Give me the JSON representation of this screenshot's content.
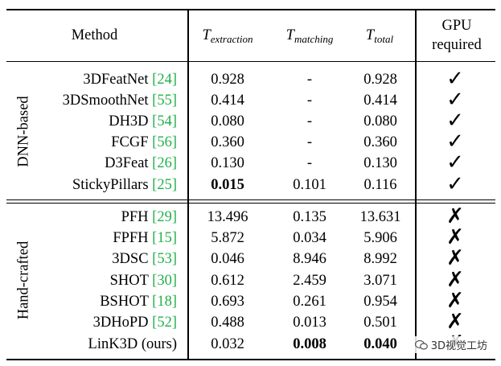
{
  "header": {
    "method": "Method",
    "t_extraction": {
      "base": "T",
      "sub": "extraction"
    },
    "t_matching": {
      "base": "T",
      "sub": "matching"
    },
    "t_total": {
      "base": "T",
      "sub": "total"
    },
    "gpu_line1": "GPU",
    "gpu_line2": "required"
  },
  "groups": {
    "dnn": "DNN-based",
    "handcrafted": "Hand-crafted"
  },
  "rows": [
    {
      "name": "3DFeatNet",
      "cite": "[24]",
      "t_ext": "0.928",
      "t_match": "-",
      "t_total": "0.928",
      "gpu": "✓"
    },
    {
      "name": "3DSmoothNet",
      "cite": "[55]",
      "t_ext": "0.414",
      "t_match": "-",
      "t_total": "0.414",
      "gpu": "✓"
    },
    {
      "name": "DH3D",
      "cite": "[54]",
      "t_ext": "0.080",
      "t_match": "-",
      "t_total": "0.080",
      "gpu": "✓"
    },
    {
      "name": "FCGF",
      "cite": "[56]",
      "t_ext": "0.360",
      "t_match": "-",
      "t_total": "0.360",
      "gpu": "✓"
    },
    {
      "name": "D3Feat",
      "cite": "[26]",
      "t_ext": "0.130",
      "t_match": "-",
      "t_total": "0.130",
      "gpu": "✓"
    },
    {
      "name": "StickyPillars",
      "cite": "[25]",
      "t_ext": "0.015",
      "t_match": "0.101",
      "t_total": "0.116",
      "gpu": "✓"
    },
    {
      "name": "PFH",
      "cite": "[29]",
      "t_ext": "13.496",
      "t_match": "0.135",
      "t_total": "13.631",
      "gpu": "✗"
    },
    {
      "name": "FPFH",
      "cite": "[15]",
      "t_ext": "5.872",
      "t_match": "0.034",
      "t_total": "5.906",
      "gpu": "✗"
    },
    {
      "name": "3DSC",
      "cite": "[53]",
      "t_ext": "0.046",
      "t_match": "8.946",
      "t_total": "8.992",
      "gpu": "✗"
    },
    {
      "name": "SHOT",
      "cite": "[30]",
      "t_ext": "0.612",
      "t_match": "2.459",
      "t_total": "3.071",
      "gpu": "✗"
    },
    {
      "name": "BSHOT",
      "cite": "[18]",
      "t_ext": "0.693",
      "t_match": "0.261",
      "t_total": "0.954",
      "gpu": "✗"
    },
    {
      "name": "3DHoPD",
      "cite": "[52]",
      "t_ext": "0.488",
      "t_match": "0.013",
      "t_total": "0.501",
      "gpu": "✗"
    },
    {
      "name": "LinK3D (ours)",
      "cite": "",
      "t_ext": "0.032",
      "t_match": "0.008",
      "t_total": "0.040",
      "gpu": "✗"
    }
  ],
  "watermark": "3D视觉工坊"
}
